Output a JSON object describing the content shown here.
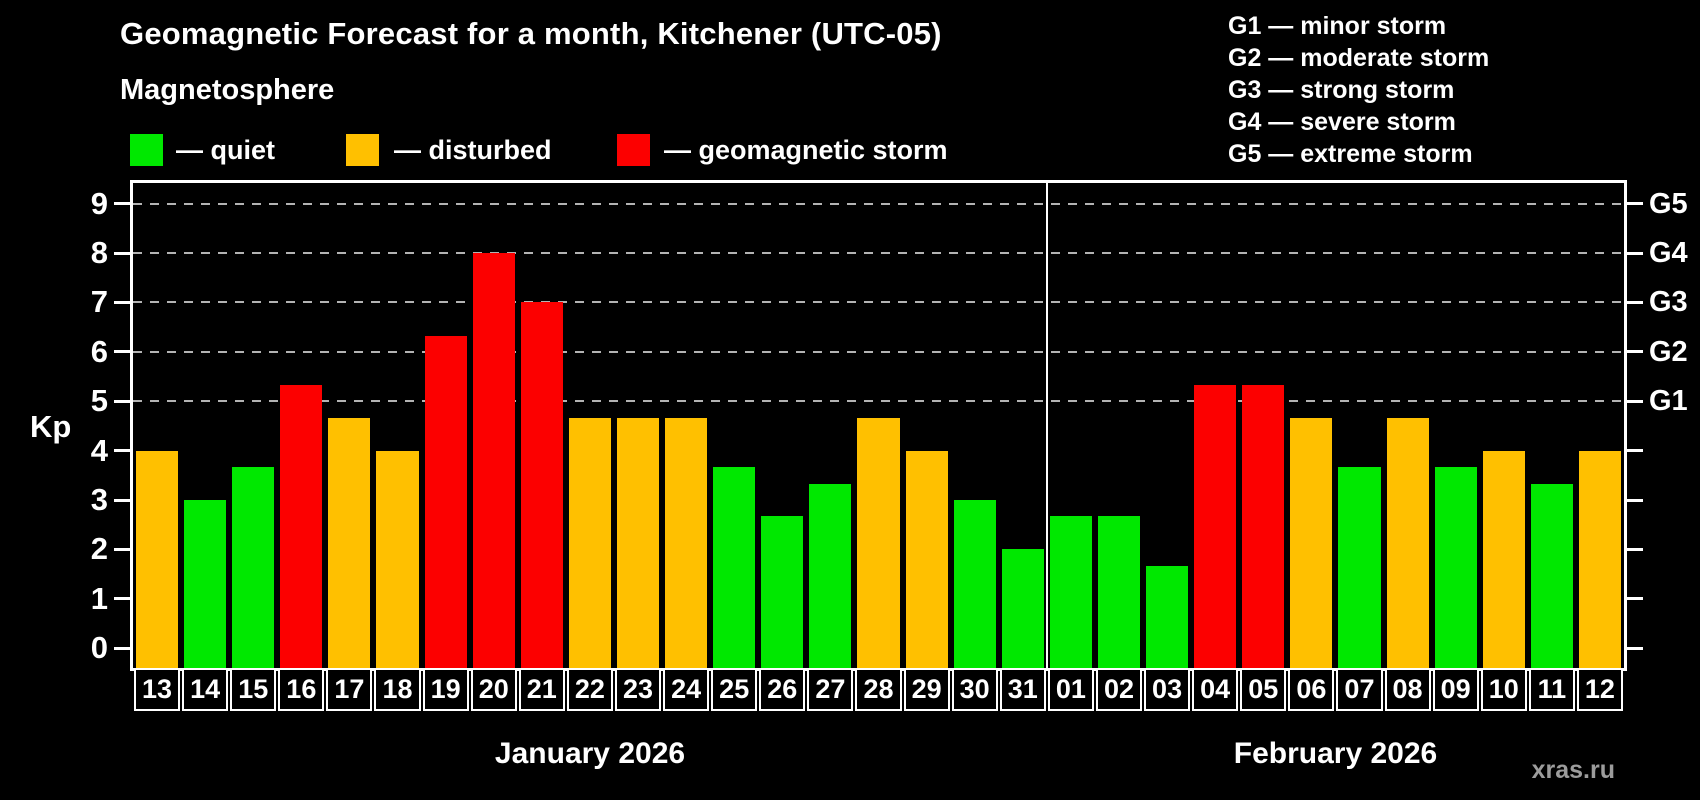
{
  "header": {
    "title": "Geomagnetic Forecast for a month, Kitchener (UTC-05)",
    "subtitle": "Magnetosphere",
    "legend": [
      {
        "key": "quiet",
        "label": "— quiet",
        "color": "#00e800"
      },
      {
        "key": "disturbed",
        "label": "— disturbed",
        "color": "#ffc000"
      },
      {
        "key": "storm",
        "label": "— geomagnetic storm",
        "color": "#fc0000"
      }
    ]
  },
  "g_legend": [
    "G1 — minor storm",
    "G2 — moderate storm",
    "G3 — strong storm",
    "G4 — severe storm",
    "G5 — extreme storm"
  ],
  "chart_data": {
    "type": "bar",
    "title": "Geomagnetic Forecast for a month, Kitchener (UTC-05)",
    "ylabel": "Kp",
    "ylim": [
      -0.4,
      9.42
    ],
    "y_ticks": [
      0,
      1,
      2,
      3,
      4,
      5,
      6,
      7,
      8,
      9
    ],
    "grid_kp": [
      5,
      6,
      7,
      8,
      9
    ],
    "right_axis_labels": [
      {
        "kp": 5,
        "label": "G1"
      },
      {
        "kp": 6,
        "label": "G2"
      },
      {
        "kp": 7,
        "label": "G3"
      },
      {
        "kp": 8,
        "label": "G4"
      },
      {
        "kp": 9,
        "label": "G5"
      }
    ],
    "months": [
      {
        "label": "January 2026",
        "days": 19
      },
      {
        "label": "February 2026",
        "days": 12
      }
    ],
    "categories": [
      "13",
      "14",
      "15",
      "16",
      "17",
      "18",
      "19",
      "20",
      "21",
      "22",
      "23",
      "24",
      "25",
      "26",
      "27",
      "28",
      "29",
      "30",
      "31",
      "01",
      "02",
      "03",
      "04",
      "05",
      "06",
      "07",
      "08",
      "09",
      "10",
      "11",
      "12"
    ],
    "values": [
      4.0,
      3.0,
      3.67,
      5.33,
      4.67,
      4.0,
      6.33,
      8.0,
      7.0,
      4.67,
      4.67,
      4.67,
      3.67,
      2.67,
      3.33,
      4.67,
      4.0,
      3.0,
      2.0,
      2.67,
      2.67,
      1.67,
      5.33,
      5.33,
      4.67,
      3.67,
      4.67,
      3.67,
      4.0,
      3.33,
      4.0
    ],
    "states": [
      "disturbed",
      "quiet",
      "quiet",
      "storm",
      "disturbed",
      "disturbed",
      "storm",
      "storm",
      "storm",
      "disturbed",
      "disturbed",
      "disturbed",
      "quiet",
      "quiet",
      "quiet",
      "disturbed",
      "disturbed",
      "quiet",
      "quiet",
      "quiet",
      "quiet",
      "quiet",
      "storm",
      "storm",
      "disturbed",
      "quiet",
      "disturbed",
      "quiet",
      "disturbed",
      "quiet",
      "disturbed"
    ],
    "state_colors": {
      "quiet": "#00e800",
      "disturbed": "#ffc000",
      "storm": "#fc0000"
    },
    "legend_position": "top-left",
    "grid": "dashed horizontal at G1–G5 levels only"
  },
  "watermark": "xras.ru"
}
